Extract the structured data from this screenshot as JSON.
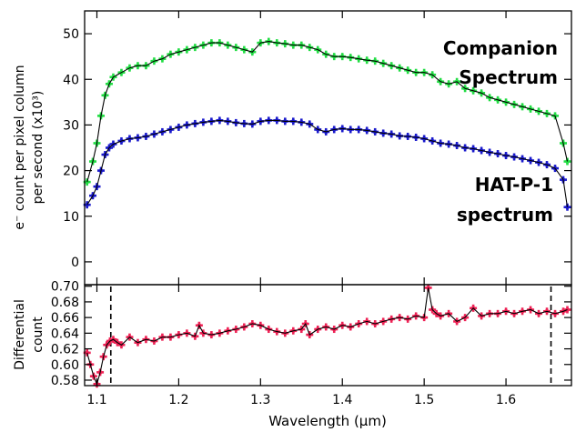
{
  "chart_data": [
    {
      "type": "scatter",
      "panel": "top",
      "title": "",
      "xlabel": "",
      "ylabel_line1": "e⁻ count per pixel column",
      "ylabel_line2": "per second (x10³)",
      "xlim": [
        1.085,
        1.68
      ],
      "ylim": [
        -5,
        55
      ],
      "yticks": [
        0,
        10,
        20,
        30,
        40,
        50
      ],
      "xticks": [
        1.1,
        1.2,
        1.3,
        1.4,
        1.5,
        1.6
      ],
      "grid": false,
      "annotations": [
        {
          "lines": [
            "Companion",
            "Spectrum"
          ],
          "color": "#000000"
        },
        {
          "lines": [
            "HAT-P-1",
            "spectrum"
          ],
          "color": "#000000"
        }
      ],
      "series": [
        {
          "color": "#22dd44",
          "model_line_color": "#000000",
          "x": [
            1.088,
            1.095,
            1.1,
            1.105,
            1.11,
            1.115,
            1.12,
            1.13,
            1.14,
            1.15,
            1.16,
            1.17,
            1.18,
            1.19,
            1.2,
            1.21,
            1.22,
            1.23,
            1.24,
            1.25,
            1.26,
            1.27,
            1.28,
            1.29,
            1.3,
            1.31,
            1.32,
            1.33,
            1.34,
            1.35,
            1.36,
            1.37,
            1.38,
            1.39,
            1.4,
            1.41,
            1.42,
            1.43,
            1.44,
            1.45,
            1.46,
            1.47,
            1.48,
            1.49,
            1.5,
            1.51,
            1.52,
            1.53,
            1.54,
            1.55,
            1.56,
            1.57,
            1.58,
            1.59,
            1.6,
            1.61,
            1.62,
            1.63,
            1.64,
            1.65,
            1.66,
            1.67,
            1.675
          ],
          "y": [
            17.5,
            22,
            26,
            32,
            36.5,
            39,
            40.5,
            41.5,
            42.5,
            43,
            43,
            44,
            44.5,
            45.5,
            46,
            46.5,
            47,
            47.5,
            48,
            48,
            47.5,
            47,
            46.5,
            46,
            48,
            48.3,
            48,
            47.8,
            47.5,
            47.5,
            47,
            46.5,
            45.5,
            45,
            45,
            44.8,
            44.5,
            44.2,
            44,
            43.5,
            43,
            42.5,
            42,
            41.5,
            41.5,
            41,
            39.5,
            39,
            39.5,
            38,
            37.5,
            37,
            36,
            35.5,
            35,
            34.5,
            34,
            33.5,
            33,
            32.5,
            32,
            26,
            22
          ]
        },
        {
          "color": "#1a1acc",
          "model_line_color": "#000000",
          "x": [
            1.088,
            1.095,
            1.1,
            1.105,
            1.11,
            1.115,
            1.12,
            1.13,
            1.14,
            1.15,
            1.16,
            1.17,
            1.18,
            1.19,
            1.2,
            1.21,
            1.22,
            1.23,
            1.24,
            1.25,
            1.26,
            1.27,
            1.28,
            1.29,
            1.3,
            1.31,
            1.32,
            1.33,
            1.34,
            1.35,
            1.36,
            1.37,
            1.38,
            1.39,
            1.4,
            1.41,
            1.42,
            1.43,
            1.44,
            1.45,
            1.46,
            1.47,
            1.48,
            1.49,
            1.5,
            1.51,
            1.52,
            1.53,
            1.54,
            1.55,
            1.56,
            1.57,
            1.58,
            1.59,
            1.6,
            1.61,
            1.62,
            1.63,
            1.64,
            1.65,
            1.66,
            1.67,
            1.675
          ],
          "y": [
            12.5,
            14.5,
            16.5,
            20,
            23.5,
            25,
            25.8,
            26.5,
            27,
            27.2,
            27.5,
            28,
            28.5,
            29,
            29.5,
            30,
            30.3,
            30.6,
            30.8,
            31,
            30.8,
            30.5,
            30.3,
            30.2,
            30.8,
            31,
            31,
            30.8,
            30.8,
            30.6,
            30.2,
            29,
            28.5,
            29,
            29.2,
            29,
            29,
            28.8,
            28.5,
            28.2,
            28,
            27.6,
            27.5,
            27.3,
            27,
            26.5,
            26,
            25.8,
            25.5,
            25,
            24.8,
            24.4,
            24,
            23.7,
            23.3,
            23,
            22.6,
            22.2,
            21.8,
            21.3,
            20.5,
            18,
            12
          ]
        }
      ]
    },
    {
      "type": "scatter",
      "panel": "bottom",
      "title": "",
      "xlabel": "Wavelength (μm)",
      "ylabel_line1": "Differential",
      "ylabel_line2": "count",
      "xlim": [
        1.085,
        1.68
      ],
      "ylim": [
        0.573,
        0.702
      ],
      "yticks": [
        0.58,
        0.6,
        0.62,
        0.64,
        0.66,
        0.68,
        0.7
      ],
      "xticks": [
        1.1,
        1.2,
        1.3,
        1.4,
        1.5,
        1.6
      ],
      "grid": false,
      "vlines": [
        1.117,
        1.655
      ],
      "series": [
        {
          "color": "#ee2255",
          "model_line_color": "#000000",
          "x": [
            1.088,
            1.092,
            1.096,
            1.1,
            1.104,
            1.108,
            1.112,
            1.116,
            1.12,
            1.125,
            1.13,
            1.14,
            1.15,
            1.16,
            1.17,
            1.18,
            1.19,
            1.2,
            1.21,
            1.22,
            1.225,
            1.23,
            1.24,
            1.25,
            1.26,
            1.27,
            1.28,
            1.29,
            1.3,
            1.31,
            1.32,
            1.33,
            1.34,
            1.35,
            1.355,
            1.36,
            1.37,
            1.38,
            1.39,
            1.4,
            1.41,
            1.42,
            1.43,
            1.44,
            1.45,
            1.46,
            1.47,
            1.48,
            1.49,
            1.5,
            1.505,
            1.51,
            1.515,
            1.52,
            1.53,
            1.54,
            1.55,
            1.56,
            1.57,
            1.58,
            1.59,
            1.6,
            1.61,
            1.62,
            1.63,
            1.64,
            1.65,
            1.66,
            1.67,
            1.675
          ],
          "y": [
            0.615,
            0.6,
            0.585,
            0.575,
            0.59,
            0.61,
            0.625,
            0.63,
            0.632,
            0.628,
            0.625,
            0.635,
            0.628,
            0.632,
            0.63,
            0.635,
            0.635,
            0.638,
            0.64,
            0.636,
            0.65,
            0.64,
            0.638,
            0.64,
            0.643,
            0.645,
            0.648,
            0.652,
            0.65,
            0.645,
            0.642,
            0.64,
            0.643,
            0.645,
            0.652,
            0.638,
            0.645,
            0.648,
            0.645,
            0.65,
            0.648,
            0.652,
            0.655,
            0.652,
            0.655,
            0.658,
            0.66,
            0.658,
            0.662,
            0.66,
            0.698,
            0.67,
            0.665,
            0.662,
            0.665,
            0.655,
            0.66,
            0.672,
            0.662,
            0.665,
            0.665,
            0.668,
            0.665,
            0.668,
            0.67,
            0.665,
            0.668,
            0.665,
            0.668,
            0.67
          ]
        }
      ]
    }
  ]
}
